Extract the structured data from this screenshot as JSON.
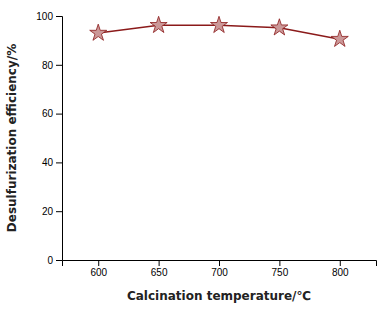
{
  "chart_data": {
    "type": "line",
    "xlabel": "Calcination temperature/℃",
    "ylabel": "Desulfurization efficiency/%",
    "x": [
      600,
      650,
      700,
      750,
      800
    ],
    "values": [
      93.0,
      96.2,
      96.2,
      95.2,
      90.5
    ],
    "color": "#8B1A1A",
    "marker": "star",
    "xlim": [
      570,
      830
    ],
    "ylim": [
      0,
      100
    ],
    "xticks": [
      600,
      650,
      700,
      750,
      800
    ],
    "yticks": [
      0,
      20,
      40,
      60,
      80,
      100
    ],
    "grid": false
  }
}
